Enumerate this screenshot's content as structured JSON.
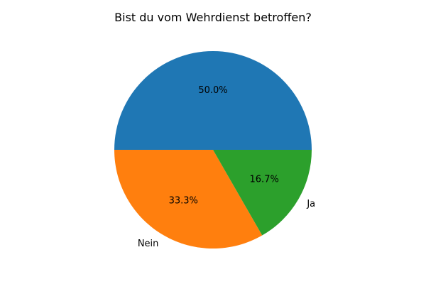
{
  "chart_data": {
    "type": "pie",
    "title": "Bist du vom Wehrdienst betroffen?",
    "slices": [
      {
        "label": "",
        "value": 50.0,
        "pct_label": "50.0%",
        "color": "#1f77b4"
      },
      {
        "label": "Nein",
        "value": 33.3,
        "pct_label": "33.3%",
        "color": "#ff7f0e"
      },
      {
        "label": "Ja",
        "value": 16.7,
        "pct_label": "16.7%",
        "color": "#2ca02c"
      }
    ],
    "start_angle_deg": 0,
    "direction": "counterclockwise"
  }
}
